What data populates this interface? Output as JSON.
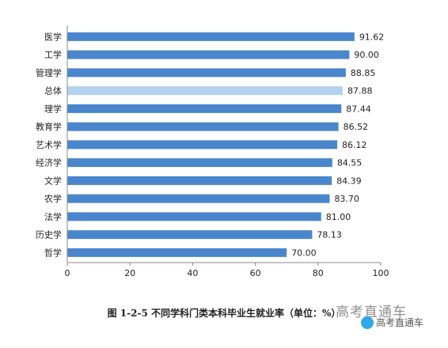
{
  "chart_data": {
    "type": "bar",
    "orientation": "horizontal",
    "title": "图 1-2-5  不同学科门类本科毕业生就业率（单位：%）",
    "categories": [
      "医学",
      "工学",
      "管理学",
      "总体",
      "理学",
      "教育学",
      "艺术学",
      "经济学",
      "文学",
      "农学",
      "法学",
      "历史学",
      "哲学"
    ],
    "values": [
      91.62,
      90.0,
      88.85,
      87.88,
      87.44,
      86.52,
      86.12,
      84.55,
      84.39,
      83.7,
      81.0,
      78.13,
      70.0
    ],
    "value_labels": [
      "91.62",
      "90.00",
      "88.85",
      "87.88",
      "87.44",
      "86.52",
      "86.12",
      "84.55",
      "84.39",
      "83.70",
      "81.00",
      "78.13",
      "70.00"
    ],
    "highlight_category": "总体",
    "xlim": [
      0,
      100
    ],
    "xticks": [
      0,
      20,
      40,
      60,
      80,
      100
    ],
    "bar_color": "#4a86cc",
    "highlight_color": "#b4d2ee",
    "grid": false,
    "legend": "none"
  },
  "watermark": {
    "text": "高考直通车",
    "logo_text": "高考直通车"
  }
}
